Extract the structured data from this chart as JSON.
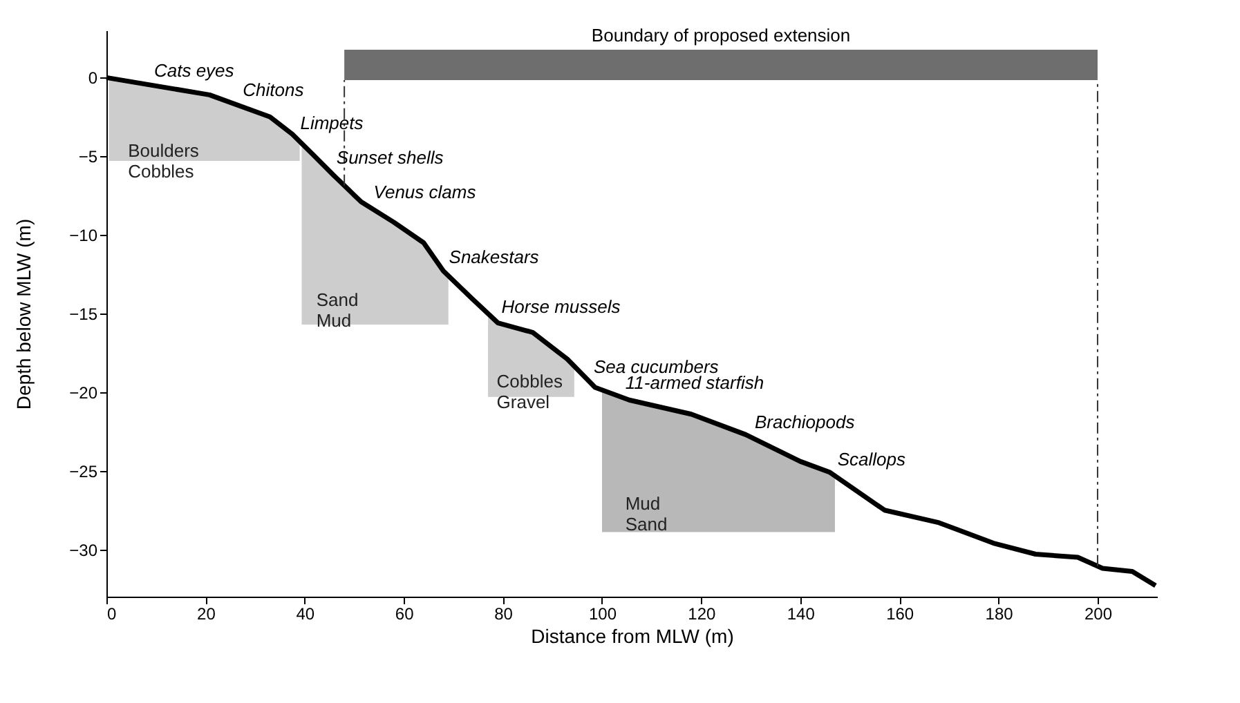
{
  "chart_data": {
    "type": "line",
    "xlabel": "Distance from MLW (m)",
    "ylabel": "Depth below MLW (m)",
    "xlim": [
      0,
      212
    ],
    "xticks": [
      0,
      20,
      40,
      60,
      80,
      100,
      120,
      140,
      160,
      180,
      200
    ],
    "ylim": [
      -33,
      3
    ],
    "yticks": [
      0,
      -5,
      -10,
      -15,
      -20,
      -25,
      -30
    ],
    "line_style": "solid",
    "series": [
      {
        "type": "area",
        "name": "Boulders\nCobbles",
        "color": "#c8c8c8",
        "x": [
          0.5,
          20.8,
          33,
          37.5,
          39
        ],
        "values": [
          -5.3,
          -5.3,
          -5.3,
          -5.3,
          -5.3
        ]
      },
      {
        "type": "area",
        "name": "Sand\nMud",
        "color": "#c8c8c8",
        "x": [
          39.4,
          41.7,
          45.8,
          51.4,
          58,
          64,
          68,
          69
        ],
        "values": [
          -15.7,
          -15.7,
          -15.7,
          -15.7,
          -15.7,
          -15.7,
          -15.7,
          -15.7
        ]
      },
      {
        "type": "area",
        "name": "Cobbles\nGravel",
        "color": "#c8c8c8",
        "x": [
          77,
          79,
          86,
          93,
          94.4
        ],
        "values": [
          -20.3,
          -20.3,
          -20.3,
          -20.3,
          -20.3
        ]
      },
      {
        "type": "area",
        "name": "Mud\nSand",
        "color": "#b0b0b0",
        "x": [
          100,
          105.5,
          118,
          129,
          140,
          146,
          147
        ],
        "values": [
          -28.9,
          -28.9,
          -28.9,
          -28.9,
          -28.9,
          -28.9,
          -28.9
        ]
      },
      {
        "color": "#000000",
        "x": [
          0,
          20.8,
          33,
          37.5,
          41.7,
          45.8,
          51.4,
          58,
          64,
          68,
          73.6,
          79,
          86,
          93,
          98.6,
          105.5,
          118,
          129,
          140,
          146,
          157,
          168,
          179,
          187.5,
          196,
          201,
          207,
          211.7
        ],
        "values": [
          0,
          -1.1,
          -2.5,
          -3.6,
          -4.9,
          -6.2,
          -7.9,
          -9.2,
          -10.5,
          -12.3,
          -14,
          -15.6,
          -16.2,
          -17.9,
          -19.7,
          -20.5,
          -21.4,
          -22.7,
          -24.4,
          -25.1,
          -27.5,
          -28.3,
          -29.6,
          -30.3,
          -30.5,
          -31.2,
          -31.4,
          -32.3
        ]
      }
    ],
    "bands": [
      {
        "axis": "x",
        "from": 48,
        "to": 200,
        "label": "Boundary of proposed extension",
        "color": "#555555"
      }
    ],
    "annotations": [
      {
        "text": "Cats eyes",
        "x": 8.5,
        "y": -0.45
      },
      {
        "text": "Chitons",
        "x": 26.4,
        "y": -1.7
      },
      {
        "text": "Limpets",
        "x": 38,
        "y": -3.8
      },
      {
        "text": "Sunset shells",
        "x": 45.3,
        "y": -6.0
      },
      {
        "text": "Venus clams",
        "x": 52.8,
        "y": -8.2
      },
      {
        "text": "Snakestars",
        "x": 68,
        "y": -12.3
      },
      {
        "text": "Horse mussels",
        "x": 78.6,
        "y": -15.5
      },
      {
        "text": "Sea cucumbers",
        "x": 97.2,
        "y": -19.3
      },
      {
        "text": "11-armed starfish",
        "x": 103.6,
        "y": -20.3
      },
      {
        "text": "Brachiopods",
        "x": 129.7,
        "y": -22.8
      },
      {
        "text": "Scallops",
        "x": 146.4,
        "y": -25.2
      }
    ]
  }
}
